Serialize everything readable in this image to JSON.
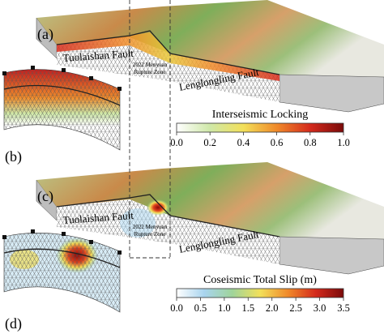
{
  "panels": [
    {
      "label": "(a)"
    },
    {
      "label": "(b)"
    },
    {
      "label": "(c)"
    },
    {
      "label": "(d)"
    }
  ],
  "map_a": {
    "tuolaishan": "Tuolaishan Fault",
    "rupture_zone": [
      "2022 Menyuan",
      "Rupture Zone"
    ],
    "lenglongling": "Lenglongling Fault"
  },
  "map_c": {
    "tuolaishan": "Tuolaishan Fault",
    "rupture_zone": [
      "2022 Menyuan",
      "Rupture Zone"
    ],
    "lenglongling": "Lenglongling Fault"
  },
  "colorbars": [
    {
      "title": "Interseismic Locking",
      "range": [
        0,
        1
      ],
      "colors": [
        "#ffffff",
        "#cfe8a8",
        "#f2e05a",
        "#f08a2a",
        "#d42a1c",
        "#7a0a0a"
      ],
      "ticks": [
        {
          "value": 0,
          "label": "0.0"
        },
        {
          "value": 0.2,
          "label": "0.2"
        },
        {
          "value": 0.4,
          "label": "0.4"
        },
        {
          "value": 0.6,
          "label": "0.6"
        },
        {
          "value": 0.8,
          "label": "0.8"
        },
        {
          "value": 1,
          "label": "1.0"
        }
      ]
    },
    {
      "title": "Coseismic Total Slip (m)",
      "range": [
        0,
        3.5
      ],
      "colors": [
        "#ffffff",
        "#a8d4ee",
        "#9fd49a",
        "#f2e05a",
        "#f08a2a",
        "#d42a1c",
        "#7a0a0a"
      ],
      "ticks": [
        {
          "value": 0,
          "label": "0.0"
        },
        {
          "value": 0.5,
          "label": "0.5"
        },
        {
          "value": 1,
          "label": "1.0"
        },
        {
          "value": 1.5,
          "label": "1.5"
        },
        {
          "value": 2,
          "label": "2.0"
        },
        {
          "value": 2.5,
          "label": "2.5"
        },
        {
          "value": 3,
          "label": "3.0"
        },
        {
          "value": 3.5,
          "label": "3.5"
        }
      ]
    }
  ]
}
